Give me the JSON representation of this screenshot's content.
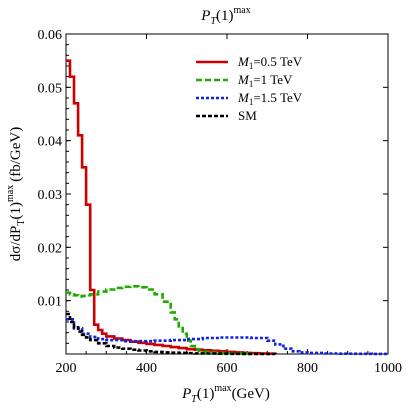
{
  "chart_data": {
    "type": "line",
    "title": "P_T(1)^max",
    "title_parts": {
      "main": "P",
      "sub": "T",
      "rest": "(1)",
      "sup": "max"
    },
    "xlabel": "P_T(1)^max(GeV)",
    "xlabel_parts": {
      "main": "P",
      "sub": "T",
      "rest": "(1)",
      "sup": "max",
      "unit": "(GeV)"
    },
    "ylabel": "dσ/dP_T(1)^max (fb/GeV)",
    "ylabel_parts": {
      "pre": "dσ/dP",
      "sub": "T",
      "rest": "(1)",
      "sup": "max",
      "unit": "(fb/GeV)"
    },
    "xlim": [
      200,
      1000
    ],
    "ylim": [
      0,
      0.06
    ],
    "xticks": [
      {
        "value": 200,
        "label": "200"
      },
      {
        "value": 400,
        "label": "400"
      },
      {
        "value": 600,
        "label": "600"
      },
      {
        "value": 800,
        "label": "800"
      },
      {
        "value": 1000,
        "label": "1000"
      }
    ],
    "yticks": [
      {
        "value": 0.01,
        "label": "0.01"
      },
      {
        "value": 0.02,
        "label": "0.02"
      },
      {
        "value": 0.03,
        "label": "0.03"
      },
      {
        "value": 0.04,
        "label": "0.04"
      },
      {
        "value": 0.05,
        "label": "0.05"
      },
      {
        "value": 0.06,
        "label": "0.06"
      }
    ],
    "grid": false,
    "legend_position": "top-right",
    "series": [
      {
        "name": "M_1=0.5 TeV",
        "name_parts": {
          "main": "M",
          "sub": "1",
          "rest": "=0.5 TeV"
        },
        "color": "#cc0000",
        "dash": "solid",
        "step": true,
        "x": [
          200,
          210,
          220,
          230,
          240,
          250,
          260,
          270,
          280,
          290,
          300,
          320,
          340,
          360,
          380,
          400,
          420,
          440,
          460,
          480,
          500,
          520,
          540,
          560,
          580,
          600,
          620,
          640,
          660,
          680,
          700,
          720
        ],
        "y": [
          0.055,
          0.052,
          0.047,
          0.041,
          0.035,
          0.028,
          0.012,
          0.0055,
          0.0045,
          0.0038,
          0.0033,
          0.0029,
          0.0026,
          0.0023,
          0.0021,
          0.0019,
          0.0017,
          0.0015,
          0.0013,
          0.0011,
          0.0009,
          0.0008,
          0.0007,
          0.0006,
          0.0005,
          0.0004,
          0.0003,
          0.0002,
          0.00015,
          0.0001,
          5e-05,
          0.0
        ]
      },
      {
        "name": "M_1=1 TeV",
        "name_parts": {
          "main": "M",
          "sub": "1",
          "rest": "=1 TeV"
        },
        "color": "#22aa00",
        "dash": "6,3",
        "step": true,
        "x": [
          200,
          210,
          220,
          230,
          240,
          250,
          260,
          280,
          300,
          320,
          340,
          360,
          380,
          400,
          420,
          440,
          460,
          470,
          480,
          490,
          500,
          510,
          520,
          530,
          540,
          560,
          580,
          600,
          620,
          640,
          660
        ],
        "y": [
          0.0115,
          0.0112,
          0.011,
          0.0108,
          0.0109,
          0.011,
          0.0112,
          0.0117,
          0.0121,
          0.0124,
          0.0126,
          0.0127,
          0.0125,
          0.0121,
          0.0112,
          0.0098,
          0.0078,
          0.0065,
          0.0052,
          0.0038,
          0.0025,
          0.0015,
          0.0009,
          0.0006,
          0.0004,
          0.0003,
          0.0002,
          0.00015,
          0.0001,
          5e-05,
          0.0
        ]
      },
      {
        "name": "M_1=1.5 TeV",
        "name_parts": {
          "main": "M",
          "sub": "1",
          "rest": "=1.5 TeV"
        },
        "color": "#1122dd",
        "dash": "3,2",
        "step": true,
        "x": [
          200,
          220,
          240,
          260,
          280,
          300,
          340,
          380,
          420,
          460,
          500,
          540,
          580,
          620,
          660,
          700,
          720,
          740,
          760,
          780,
          800,
          840,
          880,
          920,
          960,
          1000
        ],
        "y": [
          0.0065,
          0.0048,
          0.0038,
          0.0032,
          0.0028,
          0.0026,
          0.0024,
          0.0024,
          0.0025,
          0.0026,
          0.0028,
          0.003,
          0.0031,
          0.0031,
          0.003,
          0.0025,
          0.0018,
          0.001,
          0.0005,
          0.0003,
          0.0002,
          0.0001,
          5e-05,
          3e-05,
          1e-05,
          0.0
        ]
      },
      {
        "name": "SM",
        "color": "#000000",
        "dash": "4,2",
        "step": true,
        "x": [
          200,
          210,
          220,
          230,
          240,
          250,
          260,
          280,
          300,
          320,
          340,
          360,
          380,
          400,
          420,
          440,
          460,
          480,
          500,
          520,
          540,
          560,
          580,
          600,
          640,
          680,
          720
        ],
        "y": [
          0.0075,
          0.006,
          0.005,
          0.0042,
          0.0036,
          0.0031,
          0.0026,
          0.002,
          0.0015,
          0.0012,
          0.001,
          0.0008,
          0.00065,
          0.0005,
          0.0004,
          0.0003,
          0.00025,
          0.0002,
          0.00015,
          0.00012,
          0.0001,
          8e-05,
          6e-05,
          4e-05,
          2e-05,
          1e-05,
          0.0
        ]
      }
    ]
  }
}
